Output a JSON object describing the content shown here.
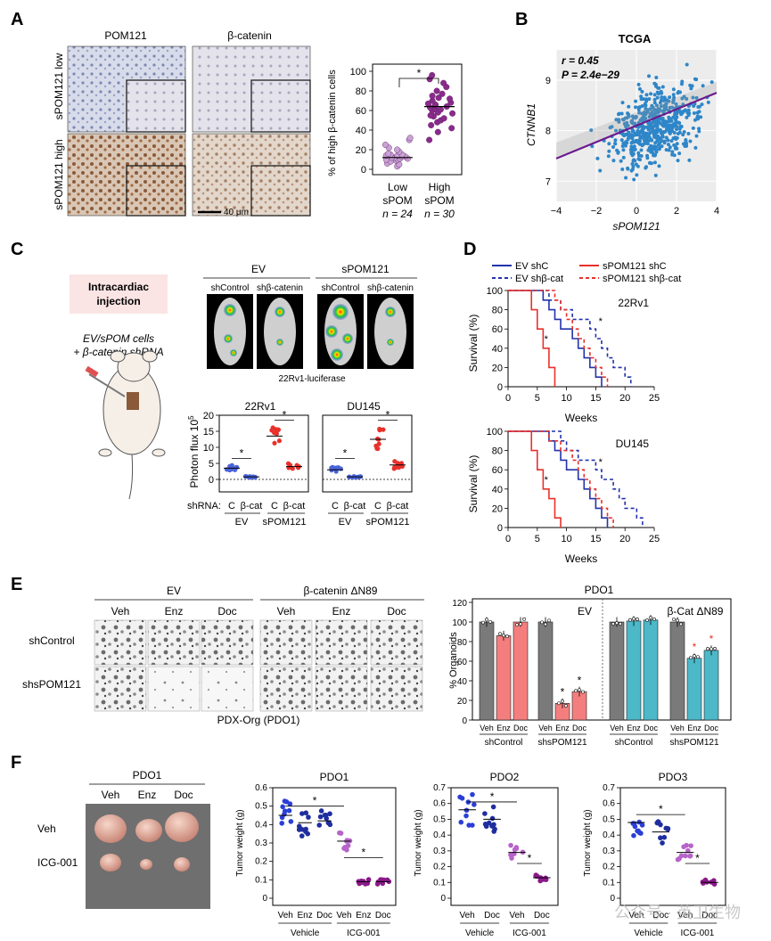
{
  "panels": {
    "A": "A",
    "B": "B",
    "C": "C",
    "D": "D",
    "E": "E",
    "F": "F"
  },
  "A": {
    "col_headers": [
      "POM121",
      "β-catenin"
    ],
    "row_labels": [
      "sPOM121 low",
      "sPOM121 high"
    ],
    "scale_bar": "40 μm",
    "plot": {
      "ylabel": "% of high β-catenin cells",
      "yticks": [
        "0",
        "20",
        "40",
        "60",
        "80",
        "100"
      ],
      "sig": "*",
      "groups": [
        {
          "l1": "Low",
          "l2": "sPOM",
          "n": "n = 24",
          "color": "#c9a2d6"
        },
        {
          "l1": "High",
          "l2": "sPOM",
          "n": "n = 30",
          "color": "#8a2b8c"
        }
      ]
    }
  },
  "B": {
    "title": "TCGA",
    "r": "r = 0.45",
    "p": "P = 2.4e−29",
    "ylabel": "CTNNB1",
    "xlabel": "sPOM121",
    "xticks": [
      "−4",
      "−2",
      "0",
      "2",
      "4"
    ],
    "yticks": [
      "7",
      "8",
      "9"
    ]
  },
  "C": {
    "inject": "Intracardiac injection",
    "cells1": "EV/sPOM cells",
    "cells2": "+ β-catenin shRNA",
    "groups": [
      "EV",
      "sPOM121"
    ],
    "sublabels": [
      "shControl",
      "shβ-catenin",
      "shControl",
      "shβ-catenin"
    ],
    "imaging_caption": "22Rv1-luciferase",
    "ylabel": "Photon flux 10",
    "ylabel_exp": "5",
    "yticks": [
      "0",
      "5",
      "10",
      "15",
      "20"
    ],
    "plots": [
      "22Rv1",
      "DU145"
    ],
    "shrna": "shRNA:",
    "xcats": [
      "C",
      "β-cat",
      "C",
      "β-cat"
    ],
    "xgroups": [
      "EV",
      "sPOM121"
    ],
    "sig": "*"
  },
  "D": {
    "legend": [
      "EV shC",
      "EV shβ-cat",
      "sPOM121 shC",
      "sPOM121 shβ-cat"
    ],
    "plots": [
      "22Rv1",
      "DU145"
    ],
    "ylabel": "Survival (%)",
    "xlabel": "Weeks",
    "xticks": [
      "0",
      "5",
      "10",
      "15",
      "20",
      "25"
    ],
    "yticks": [
      "0",
      "20",
      "40",
      "60",
      "80",
      "100"
    ],
    "sig": "*"
  },
  "E": {
    "groups": [
      "EV",
      "β-catenin ΔN89"
    ],
    "treatments": [
      "Veh",
      "Enz",
      "Doc",
      "Veh",
      "Enz",
      "Doc"
    ],
    "rows": [
      "shControl",
      "shsPOM121"
    ],
    "caption": "PDX-Org (PDO1)",
    "chart_title": "PDO1",
    "ev_label": "EV",
    "bcat_label": "β-Cat ΔN89",
    "ylabel": "% Organoids",
    "yticks": [
      "0",
      "20",
      "40",
      "60",
      "80",
      "100",
      "120"
    ],
    "xcats": [
      "Veh",
      "Enz",
      "Doc"
    ],
    "xgroups": [
      "shControl",
      "shsPOM121",
      "shControl",
      "shsPOM121"
    ],
    "sig": "*"
  },
  "F": {
    "photo_title": "PDO1",
    "photo_cols": [
      "Veh",
      "Enz",
      "Doc"
    ],
    "photo_rows": [
      "Veh",
      "ICG-001"
    ],
    "ylabel": "Tumor weight (g)",
    "groups": [
      "Vehicle",
      "ICG-001"
    ],
    "sig": "*",
    "plots": [
      {
        "title": "PDO1",
        "cats": [
          "Veh",
          "Enz",
          "Doc",
          "Veh",
          "Enz",
          "Doc"
        ],
        "yticks": [
          "0",
          "0.1",
          "0.2",
          "0.3",
          "0.4",
          "0.5",
          "0.6"
        ]
      },
      {
        "title": "PDO2",
        "cats": [
          "Veh",
          "Doc",
          "Veh",
          "Doc"
        ],
        "yticks": [
          "0",
          "0.1",
          "0.2",
          "0.3",
          "0.4",
          "0.5",
          "0.6",
          "0.7"
        ]
      },
      {
        "title": "PDO3",
        "cats": [
          "Veh",
          "Doc",
          "Veh",
          "Doc"
        ],
        "yticks": [
          "0",
          "0.1",
          "0.2",
          "0.3",
          "0.4",
          "0.5",
          "0.6",
          "0.7"
        ]
      }
    ]
  },
  "watermark": "公众号 · 英卫生物",
  "chart_data": [
    {
      "type": "scatter",
      "panel": "A",
      "title": "",
      "ylabel": "% of high β-catenin cells",
      "ylim": [
        0,
        100
      ],
      "categories": [
        "Low sPOM",
        "High sPOM"
      ],
      "series": [
        {
          "name": "Low sPOM",
          "median": 12,
          "values": [
            3,
            5,
            6,
            8,
            9,
            10,
            10,
            11,
            11,
            12,
            12,
            13,
            13,
            14,
            14,
            15,
            15,
            16,
            18,
            20,
            22,
            25,
            30,
            32
          ]
        },
        {
          "name": "High sPOM",
          "median": 64,
          "values": [
            30,
            38,
            42,
            45,
            48,
            50,
            52,
            54,
            55,
            57,
            58,
            60,
            61,
            62,
            63,
            64,
            65,
            66,
            67,
            68,
            70,
            72,
            73,
            75,
            77,
            80,
            84,
            88,
            92,
            96
          ]
        }
      ]
    },
    {
      "type": "scatter",
      "panel": "B",
      "title": "TCGA",
      "xlabel": "sPOM121",
      "ylabel": "CTNNB1",
      "xlim": [
        -4,
        4
      ],
      "ylim": [
        6.6,
        9.6
      ],
      "fit": {
        "x": [
          -4,
          4
        ],
        "y": [
          7.45,
          8.75
        ]
      },
      "r": 0.45,
      "p": "2.4e-29"
    },
    {
      "type": "scatter",
      "panel": "C",
      "title": "22Rv1",
      "ylabel": "Photon flux 10^5",
      "ylim": [
        0,
        20
      ],
      "categories": [
        "EV C",
        "EV β-cat",
        "sPOM121 C",
        "sPOM121 β-cat"
      ],
      "means": [
        3.5,
        0.8,
        13.5,
        4
      ]
    },
    {
      "type": "scatter",
      "panel": "C",
      "title": "DU145",
      "ylabel": "Photon flux 10^5",
      "ylim": [
        0,
        20
      ],
      "categories": [
        "EV C",
        "EV β-cat",
        "sPOM121 C",
        "sPOM121 β-cat"
      ],
      "means": [
        3,
        0.8,
        12.5,
        4.5
      ]
    },
    {
      "type": "line",
      "panel": "D",
      "title": "22Rv1",
      "xlabel": "Weeks",
      "ylabel": "Survival (%)",
      "xlim": [
        0,
        25
      ],
      "ylim": [
        0,
        100
      ],
      "series": [
        {
          "name": "EV shC",
          "x": [
            0,
            6,
            7,
            8,
            9,
            10,
            11,
            12,
            13,
            14,
            15,
            16
          ],
          "y": [
            100,
            90,
            80,
            70,
            60,
            60,
            50,
            40,
            30,
            20,
            10,
            0
          ]
        },
        {
          "name": "EV shβ-cat",
          "x": [
            0,
            7,
            9,
            11,
            13,
            14,
            15,
            16,
            17,
            18,
            20,
            21
          ],
          "y": [
            100,
            90,
            80,
            70,
            70,
            60,
            50,
            40,
            30,
            20,
            10,
            0
          ]
        },
        {
          "name": "sPOM121 shC",
          "x": [
            0,
            4,
            5,
            6,
            7,
            8
          ],
          "y": [
            100,
            80,
            60,
            40,
            20,
            0
          ]
        },
        {
          "name": "sPOM121 shβ-cat",
          "x": [
            0,
            8,
            9,
            10,
            11,
            12,
            13,
            14,
            15,
            16,
            17
          ],
          "y": [
            100,
            90,
            80,
            70,
            60,
            50,
            40,
            30,
            20,
            10,
            0
          ]
        }
      ]
    },
    {
      "type": "line",
      "panel": "D",
      "title": "DU145",
      "xlabel": "Weeks",
      "ylabel": "Survival (%)",
      "xlim": [
        0,
        25
      ],
      "ylim": [
        0,
        100
      ],
      "series": [
        {
          "name": "EV shC",
          "x": [
            0,
            7,
            8,
            9,
            10,
            11,
            12,
            13,
            14,
            15,
            16,
            17
          ],
          "y": [
            100,
            90,
            80,
            70,
            60,
            60,
            50,
            40,
            30,
            20,
            10,
            0
          ]
        },
        {
          "name": "EV shβ-cat",
          "x": [
            0,
            9,
            10,
            12,
            14,
            15,
            16,
            18,
            19,
            20,
            22,
            23
          ],
          "y": [
            100,
            90,
            80,
            70,
            70,
            60,
            50,
            40,
            30,
            20,
            10,
            0
          ]
        },
        {
          "name": "sPOM121 shC",
          "x": [
            0,
            4,
            5,
            6,
            7,
            8,
            9
          ],
          "y": [
            100,
            80,
            60,
            40,
            30,
            10,
            0
          ]
        },
        {
          "name": "sPOM121 shβ-cat",
          "x": [
            0,
            7,
            9,
            11,
            12,
            13,
            14,
            15,
            16,
            17,
            18
          ],
          "y": [
            100,
            90,
            80,
            70,
            60,
            50,
            40,
            30,
            20,
            10,
            0
          ]
        }
      ]
    },
    {
      "type": "bar",
      "panel": "E",
      "title": "PDO1",
      "ylabel": "% Organoids",
      "ylim": [
        0,
        120
      ],
      "categories": [
        "EV shControl Veh",
        "EV shControl Enz",
        "EV shControl Doc",
        "EV shsPOM121 Veh",
        "EV shsPOM121 Enz",
        "EV shsPOM121 Doc",
        "β-Cat shControl Veh",
        "β-Cat shControl Enz",
        "β-Cat shControl Doc",
        "β-Cat shsPOM121 Veh",
        "β-Cat shsPOM121 Enz",
        "β-Cat shsPOM121 Doc"
      ],
      "values": [
        100,
        86,
        100,
        100,
        17,
        29,
        100,
        101,
        102,
        100,
        63,
        71
      ]
    },
    {
      "type": "scatter",
      "panel": "F",
      "title": "PDO1",
      "ylabel": "Tumor weight (g)",
      "ylim": [
        0,
        0.6
      ],
      "categories": [
        "Vehicle Veh",
        "Vehicle Enz",
        "Vehicle Doc",
        "ICG-001 Veh",
        "ICG-001 Enz",
        "ICG-001 Doc"
      ],
      "means": [
        0.45,
        0.41,
        0.42,
        0.31,
        0.09,
        0.09
      ]
    },
    {
      "type": "scatter",
      "panel": "F",
      "title": "PDO2",
      "ylabel": "Tumor weight (g)",
      "ylim": [
        0,
        0.7
      ],
      "categories": [
        "Vehicle Veh",
        "Vehicle Doc",
        "ICG-001 Veh",
        "ICG-001 Doc"
      ],
      "means": [
        0.56,
        0.5,
        0.29,
        0.13
      ]
    },
    {
      "type": "scatter",
      "panel": "F",
      "title": "PDO3",
      "ylabel": "Tumor weight (g)",
      "ylim": [
        0,
        0.7
      ],
      "categories": [
        "Vehicle Veh",
        "Vehicle Doc",
        "ICG-001 Veh",
        "ICG-001 Doc"
      ],
      "means": [
        0.48,
        0.42,
        0.29,
        0.1
      ]
    }
  ]
}
